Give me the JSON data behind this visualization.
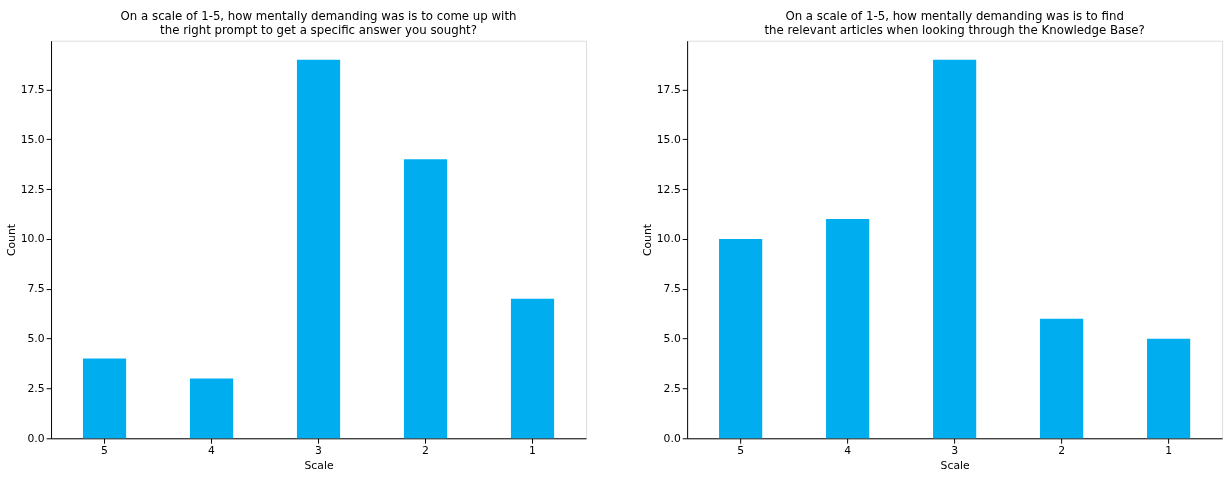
{
  "chart_data": [
    {
      "type": "bar",
      "title": "On a scale of 1-5, how mentally demanding was is to come up with\nthe right prompt to get a specific answer you sought?",
      "xlabel": "Scale",
      "ylabel": "Count",
      "categories": [
        "5",
        "4",
        "3",
        "2",
        "1"
      ],
      "values": [
        4,
        3,
        19,
        14,
        7
      ],
      "color": "#00aeef",
      "ylim": [
        0,
        19.95
      ],
      "yticks": [
        {
          "value": 0,
          "label": "0.0"
        },
        2.5,
        {
          "value": 5,
          "label": "5.0"
        },
        7.5,
        {
          "value": 10,
          "label": "10.0"
        },
        12.5,
        {
          "value": 15,
          "label": "15.0"
        },
        17.5
      ],
      "grid": false
    },
    {
      "type": "bar",
      "title": "On a scale of 1-5, how mentally demanding was is to find\nthe relevant articles when looking through the Knowledge Base?",
      "xlabel": "Scale",
      "ylabel": "Count",
      "categories": [
        "5",
        "4",
        "3",
        "2",
        "1"
      ],
      "values": [
        10,
        11,
        19,
        6,
        5
      ],
      "color": "#00aeef",
      "ylim": [
        0,
        19.95
      ],
      "yticks": [
        {
          "value": 0,
          "label": "0.0"
        },
        2.5,
        {
          "value": 5,
          "label": "5.0"
        },
        7.5,
        {
          "value": 10,
          "label": "10.0"
        },
        12.5,
        {
          "value": 15,
          "label": "15.0"
        },
        17.5
      ],
      "grid": false
    }
  ]
}
